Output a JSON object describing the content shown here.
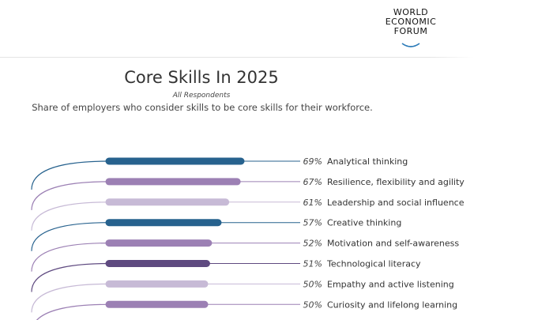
{
  "header": {
    "logo_lines": [
      "WORLD",
      "ECONOMIC",
      "FORUM"
    ]
  },
  "chart_data": {
    "type": "bar",
    "title": "Core Skills In 2025",
    "subtitle_small": "All Respondents",
    "subtitle": "Share of employers who consider skills to be core skills for their workforce.",
    "unit": "%",
    "categories": [
      "Analytical thinking",
      "Resilience, flexibility and agility",
      "Leadership and social influence",
      "Creative thinking",
      "Motivation and self-awareness",
      "Technological literacy",
      "Empathy and active listening",
      "Curiosity and lifelong learning"
    ],
    "values": [
      69,
      67,
      61,
      57,
      52,
      51,
      50,
      50
    ],
    "colors": [
      "#27628e",
      "#9c80b4",
      "#c7bad6",
      "#27628e",
      "#9c80b4",
      "#5f4a80",
      "#c7bad6",
      "#9c80b4"
    ]
  }
}
